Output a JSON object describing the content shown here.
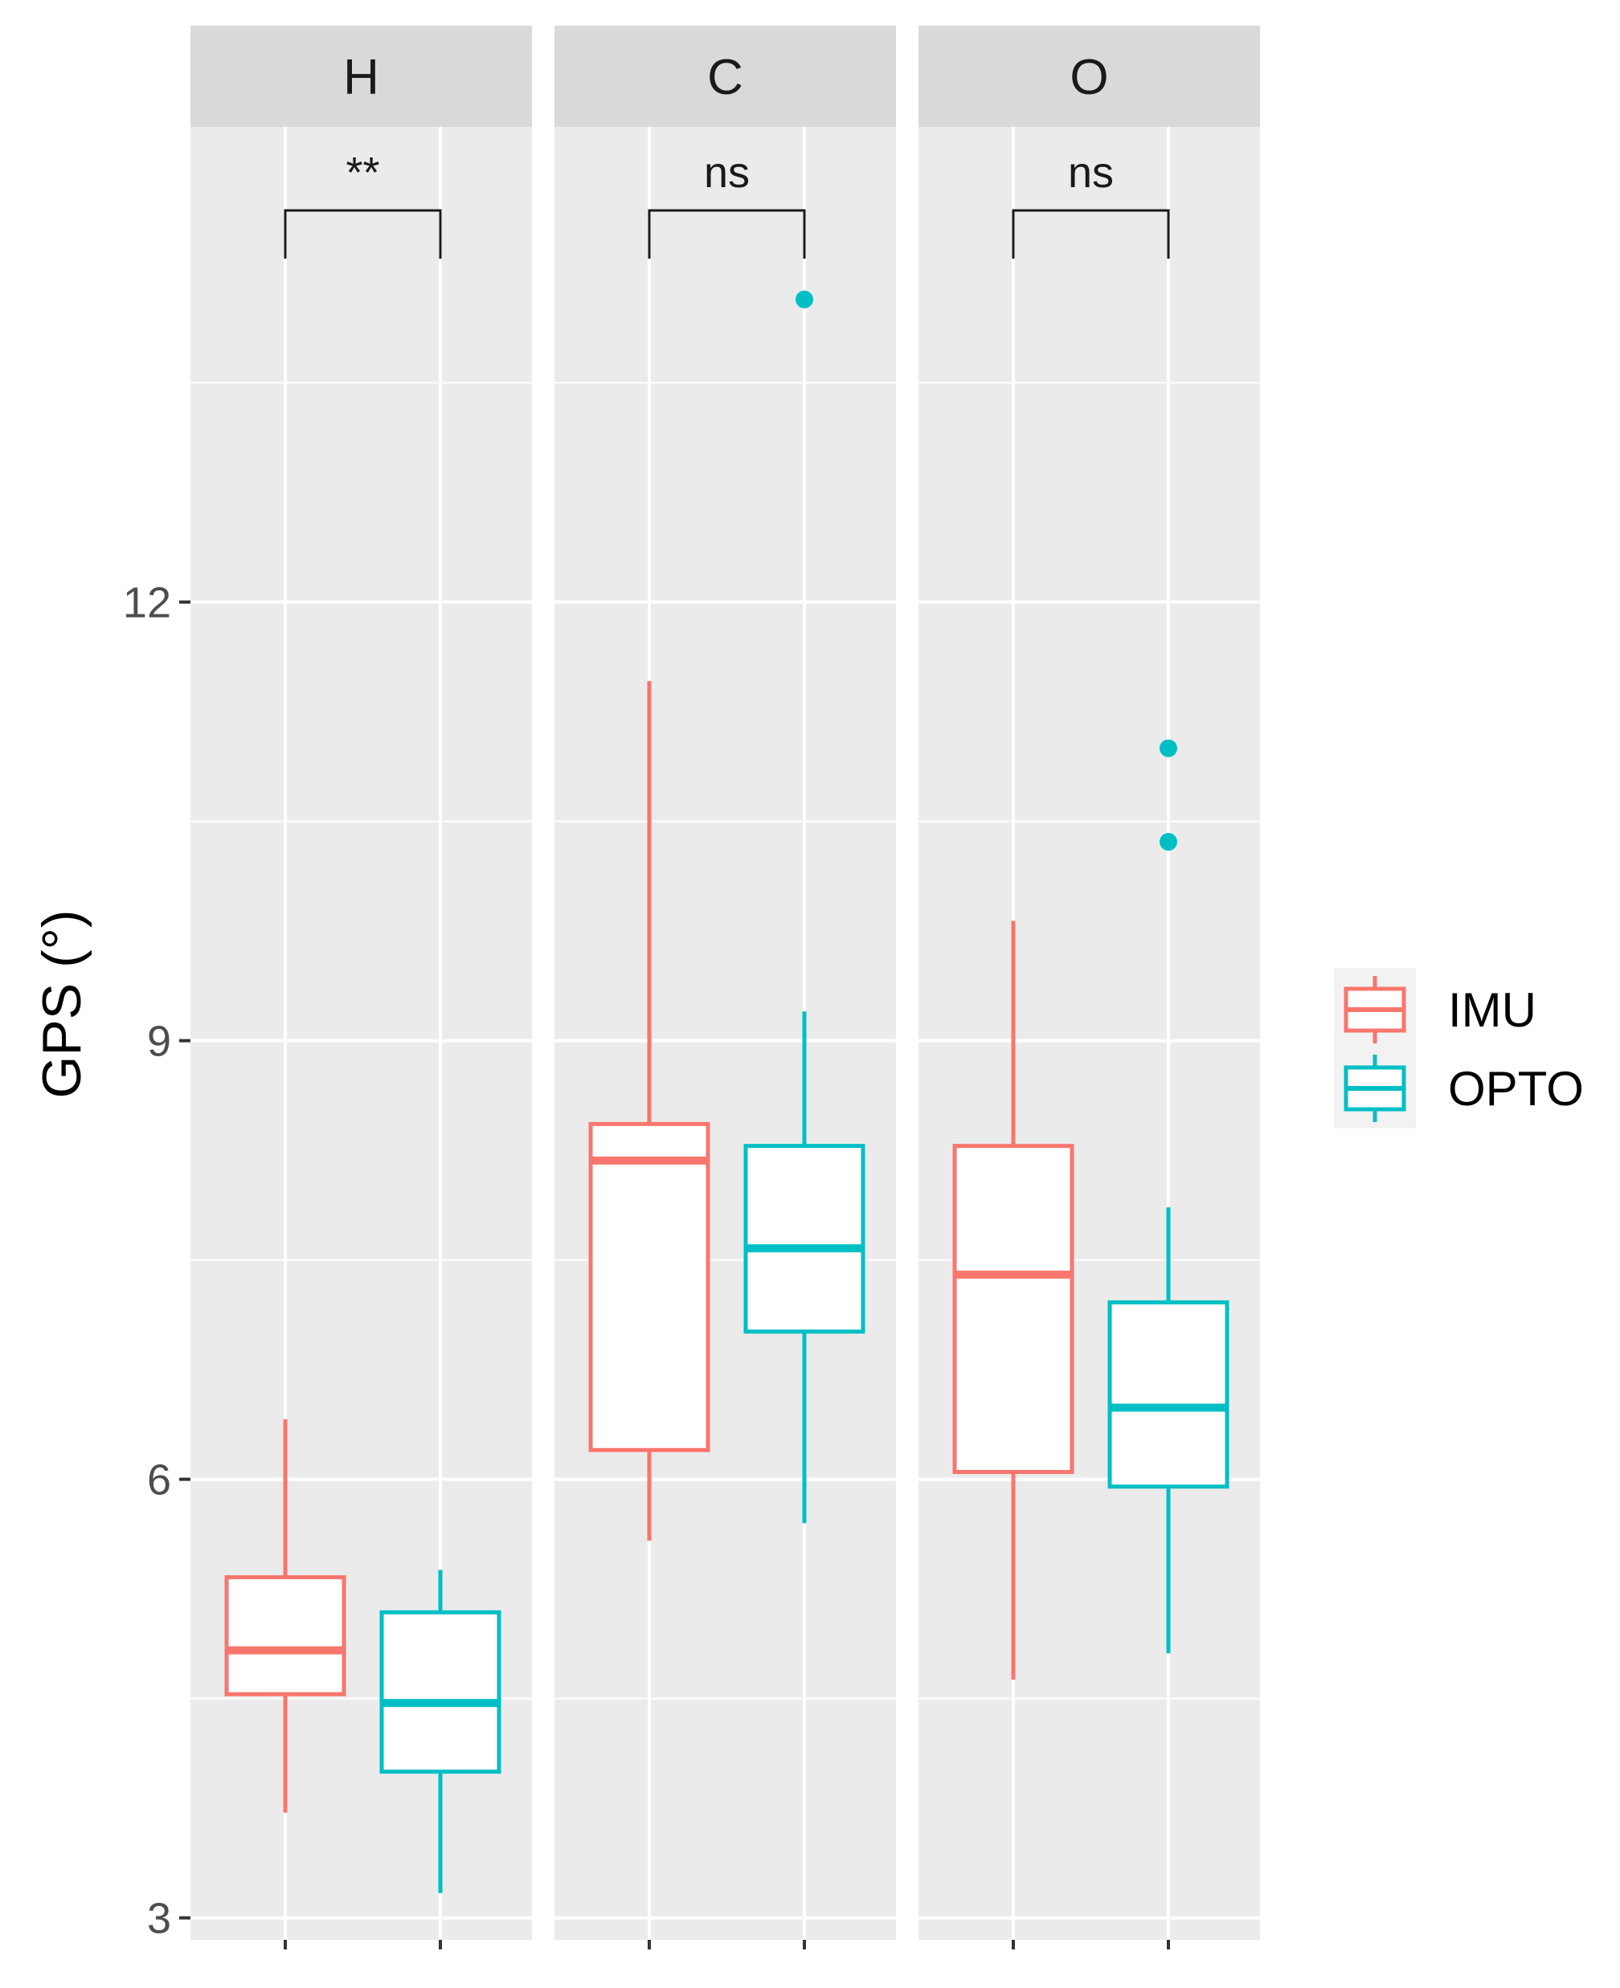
{
  "chart_data": {
    "type": "boxplot",
    "ylabel": "GPS (°)",
    "xlabel": "",
    "ylim": [
      2.85,
      15.25
    ],
    "y_ticks": [
      3,
      6,
      9,
      12
    ],
    "grid": true,
    "legend_position": "right",
    "groups": [
      "IMU",
      "OPTO"
    ],
    "colors": {
      "IMU": "#F8766D",
      "OPTO": "#00BFC4"
    },
    "panels": [
      {
        "label": "H",
        "significance": "**",
        "boxes": [
          {
            "group": "IMU",
            "min": 3.72,
            "q1": 4.53,
            "median": 4.83,
            "q3": 5.33,
            "max": 6.41,
            "outliers": []
          },
          {
            "group": "OPTO",
            "min": 3.17,
            "q1": 4.0,
            "median": 4.47,
            "q3": 5.09,
            "max": 5.38,
            "outliers": []
          }
        ]
      },
      {
        "label": "C",
        "significance": "ns",
        "boxes": [
          {
            "group": "IMU",
            "min": 5.58,
            "q1": 6.2,
            "median": 8.18,
            "q3": 8.43,
            "max": 11.46,
            "outliers": []
          },
          {
            "group": "OPTO",
            "min": 5.7,
            "q1": 7.01,
            "median": 7.58,
            "q3": 8.28,
            "max": 9.2,
            "outliers": [
              14.07
            ]
          }
        ]
      },
      {
        "label": "O",
        "significance": "ns",
        "boxes": [
          {
            "group": "IMU",
            "min": 4.63,
            "q1": 6.05,
            "median": 7.4,
            "q3": 8.28,
            "max": 9.82,
            "outliers": []
          },
          {
            "group": "OPTO",
            "min": 4.81,
            "q1": 5.95,
            "median": 6.49,
            "q3": 7.21,
            "max": 7.86,
            "outliers": [
              10.36,
              11.0
            ]
          }
        ]
      }
    ]
  }
}
